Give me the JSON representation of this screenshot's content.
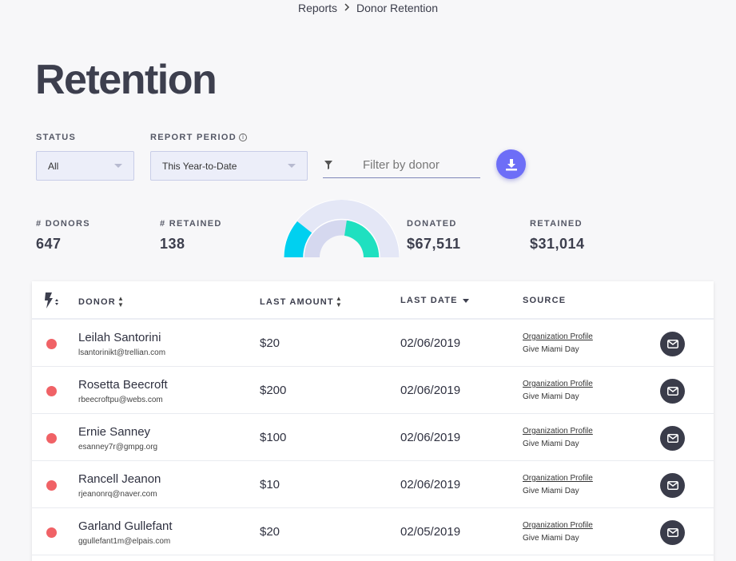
{
  "breadcrumb": {
    "parent": "Reports",
    "current": "Donor Retention"
  },
  "page": {
    "title": "Retention"
  },
  "filters": {
    "status_label": "STATUS",
    "status_value": "All",
    "period_label": "REPORT PERIOD",
    "period_value": "This Year-to-Date",
    "donor_placeholder": "Filter by donor"
  },
  "stats": {
    "donors_label": "# DONORS",
    "donors_value": "647",
    "retained_count_label": "# RETAINED",
    "retained_count_value": "138",
    "donated_label": "DONATED",
    "donated_value": "$67,511",
    "retained_amount_label": "RETAINED",
    "retained_amount_value": "$31,014"
  },
  "gauge": {
    "colors": {
      "track": "#e4e7f6",
      "donated": "#00d0f0",
      "retained": "#1fe0c0"
    }
  },
  "table": {
    "columns": {
      "donor": "DONOR",
      "last_amount": "LAST AMOUNT",
      "last_date": "LAST DATE",
      "source": "SOURCE"
    },
    "rows": [
      {
        "name": "Leilah Santorini",
        "email": "lsantorinikt@trellian.com",
        "amount": "$20",
        "date": "02/06/2019",
        "source": "Organization Profile",
        "source_sub": "Give Miami Day"
      },
      {
        "name": "Rosetta Beecroft",
        "email": "rbeecroftpu@webs.com",
        "amount": "$200",
        "date": "02/06/2019",
        "source": "Organization Profile",
        "source_sub": "Give Miami Day"
      },
      {
        "name": "Ernie Sanney",
        "email": "esanney7r@gmpg.org",
        "amount": "$100",
        "date": "02/06/2019",
        "source": "Organization Profile",
        "source_sub": "Give Miami Day"
      },
      {
        "name": "Rancell Jeanon",
        "email": "rjeanonrq@naver.com",
        "amount": "$10",
        "date": "02/06/2019",
        "source": "Organization Profile",
        "source_sub": "Give Miami Day"
      },
      {
        "name": "Garland Gullefant",
        "email": "ggullefant1m@elpais.com",
        "amount": "$20",
        "date": "02/05/2019",
        "source": "Organization Profile",
        "source_sub": "Give Miami Day"
      }
    ]
  },
  "colors": {
    "accent": "#6d6ef7",
    "status_dot": "#f06266",
    "mail_button": "#3a3c4a"
  }
}
